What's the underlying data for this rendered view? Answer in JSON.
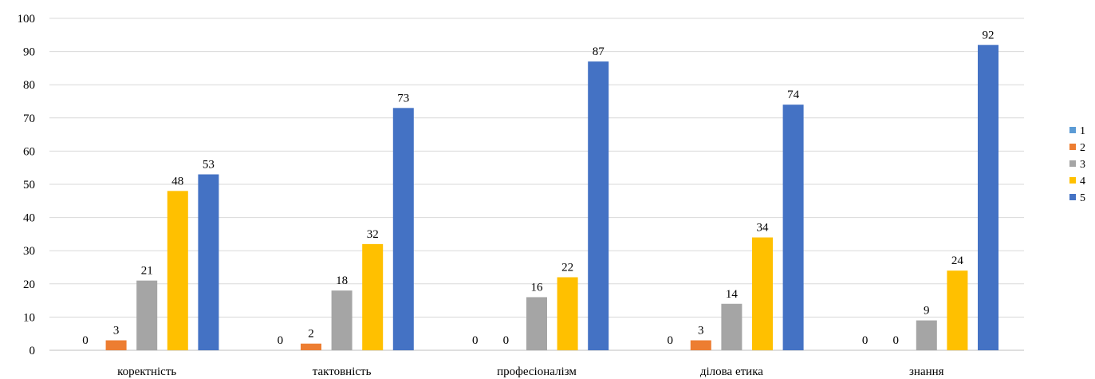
{
  "chart_data": {
    "type": "bar",
    "title": "",
    "xlabel": "",
    "ylabel": "",
    "ylim": [
      0,
      100
    ],
    "yticks": [
      0,
      10,
      20,
      30,
      40,
      50,
      60,
      70,
      80,
      90,
      100
    ],
    "grid": true,
    "legend_position": "right",
    "categories": [
      "коректність",
      "тактовність",
      "професіоналізм",
      "ділова етика",
      "знання"
    ],
    "series": [
      {
        "name": "1",
        "color": "#5B9BD5",
        "values": [
          0,
          0,
          0,
          0,
          0
        ]
      },
      {
        "name": "2",
        "color": "#ED7D31",
        "values": [
          3,
          2,
          0,
          3,
          0
        ]
      },
      {
        "name": "3",
        "color": "#A5A5A5",
        "values": [
          21,
          18,
          16,
          14,
          9
        ]
      },
      {
        "name": "4",
        "color": "#FFC000",
        "values": [
          48,
          32,
          22,
          34,
          24
        ]
      },
      {
        "name": "5",
        "color": "#4472C4",
        "values": [
          53,
          73,
          87,
          74,
          92
        ]
      }
    ]
  }
}
